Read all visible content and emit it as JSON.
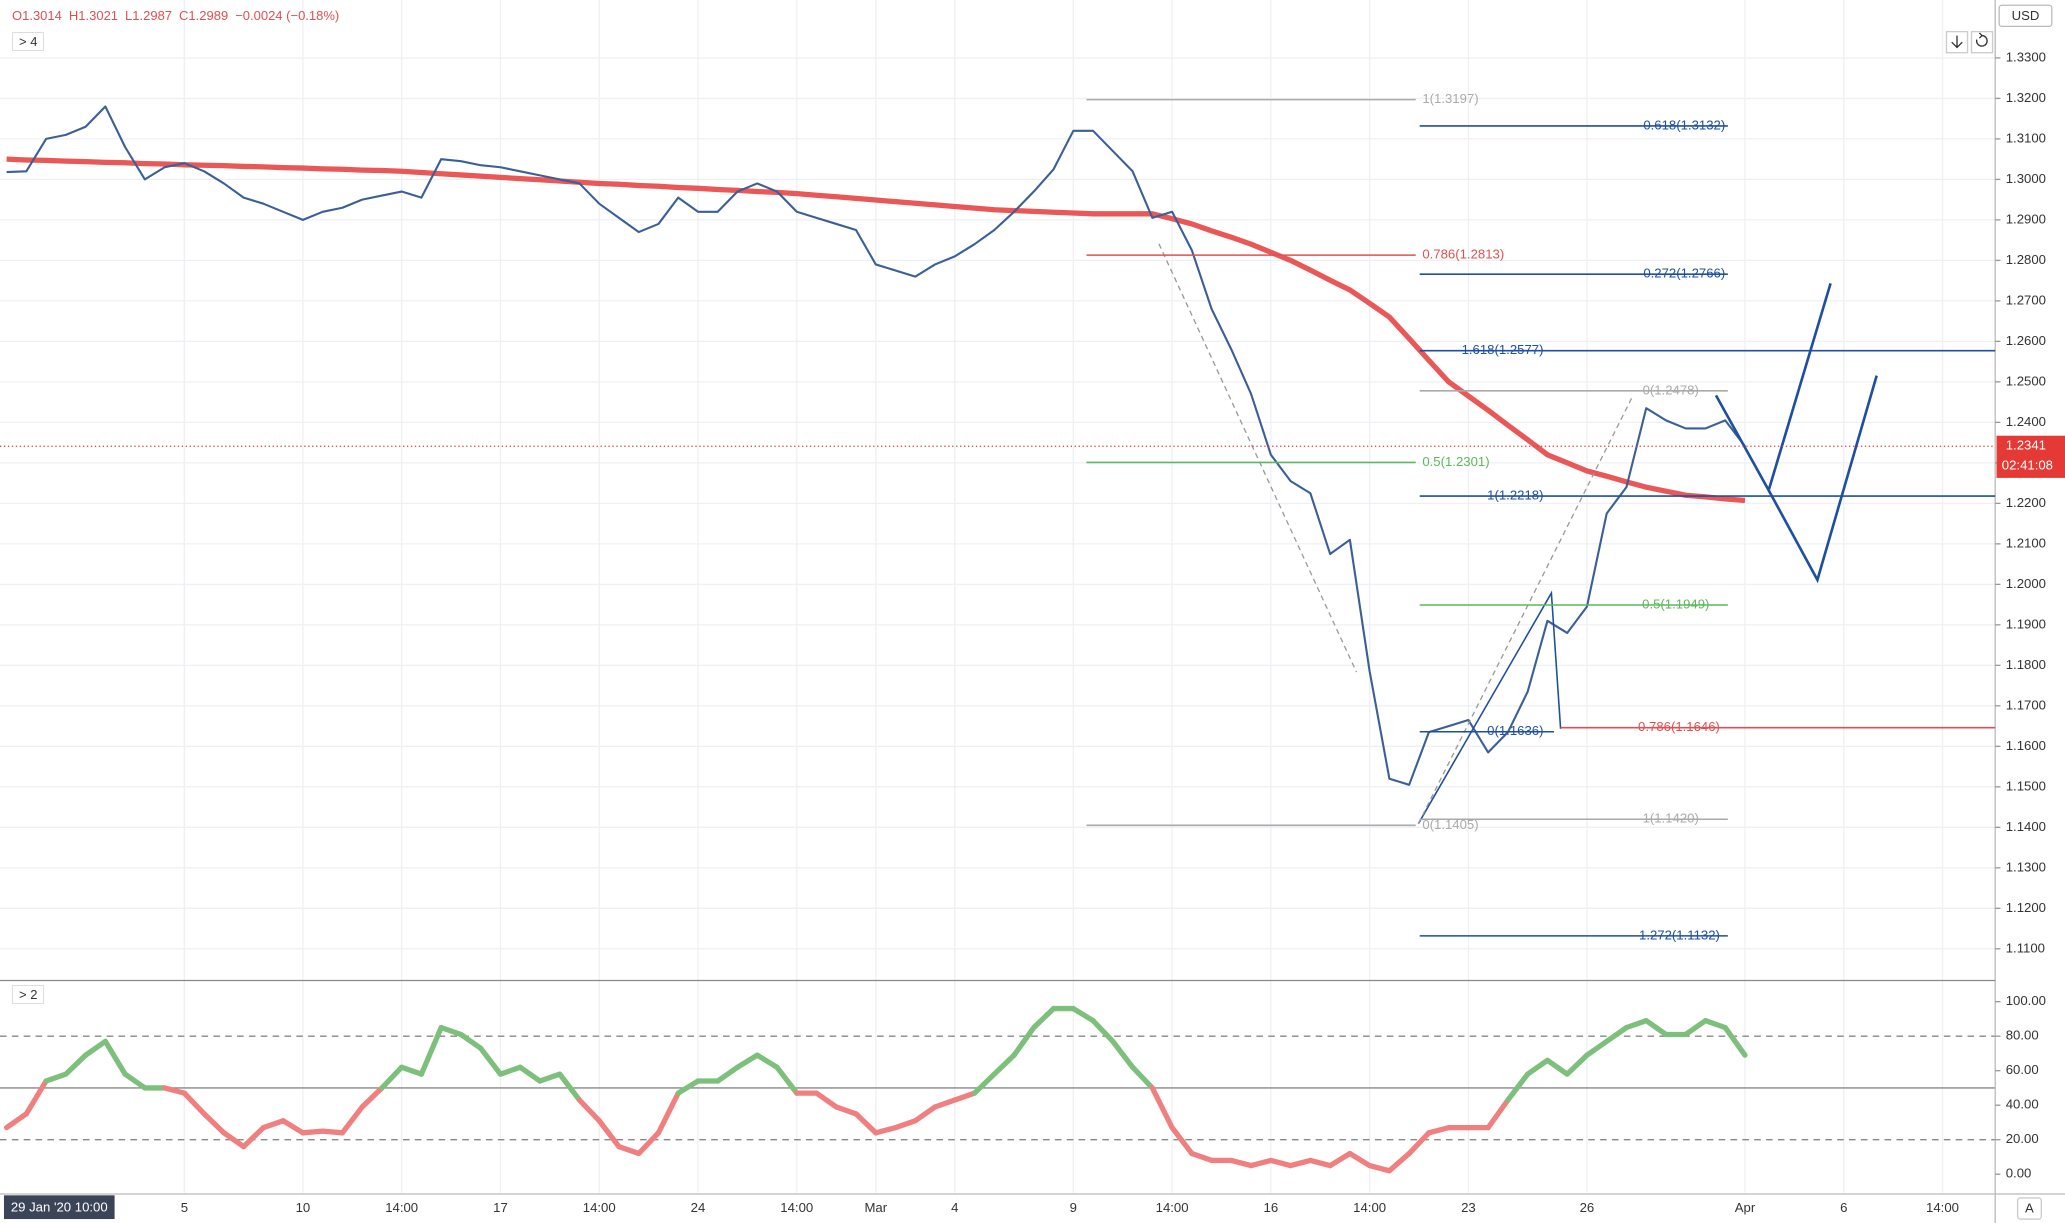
{
  "chart_data": [
    {
      "type": "line",
      "ohlc_legend": [
        "O1.3014",
        "H1.3021",
        "L1.2987",
        "C1.2989",
        "−0.0024 (−0.18%)"
      ],
      "indicator_count": "4",
      "currency": "USD",
      "auto_scale": "A",
      "crosshair_time": "29 Jan '20 10:00",
      "categories": [
        null,
        null,
        null,
        null,
        null,
        null,
        null,
        null,
        null,
        "5",
        null,
        null,
        null,
        null,
        null,
        "10",
        null,
        null,
        null,
        null,
        "14:00",
        null,
        null,
        null,
        null,
        "17",
        null,
        null,
        null,
        null,
        "14:00",
        null,
        null,
        null,
        null,
        "24",
        null,
        null,
        null,
        null,
        "14:00",
        null,
        null,
        null,
        "Mar",
        null,
        null,
        null,
        "4",
        null,
        null,
        null,
        null,
        null,
        "9",
        null,
        null,
        null,
        null,
        "14:00",
        null,
        null,
        null,
        null,
        "16",
        null,
        null,
        null,
        null,
        "14:00",
        null,
        null,
        null,
        null,
        "23",
        null,
        null,
        null,
        null,
        null,
        "26",
        null,
        null,
        null,
        null,
        null,
        null,
        null,
        "Apr",
        null,
        null,
        null,
        null,
        "6",
        null,
        null,
        null,
        null,
        "14:00",
        null,
        null
      ],
      "series": [
        {
          "color": "#e95757",
          "line_width": 4,
          "values": [
            1.305,
            1.3048,
            1.3047,
            1.3045,
            1.3044,
            1.3042,
            1.3041,
            1.3039,
            1.3038,
            1.3036,
            1.3035,
            1.3034,
            1.3032,
            1.3031,
            1.3029,
            1.3028,
            1.3026,
            1.3025,
            1.3023,
            1.3022,
            1.302,
            1.3017,
            1.3014,
            1.3011,
            1.3008,
            1.3005,
            1.3002,
            1.2999,
            1.2996,
            1.2993,
            1.299,
            1.2988,
            1.2985,
            1.2983,
            1.298,
            1.2978,
            1.2975,
            1.2973,
            1.297,
            1.2968,
            1.2965,
            1.2961,
            1.2957,
            1.2953,
            1.2949,
            1.2945,
            1.2941,
            1.2937,
            1.2933,
            1.2929,
            1.2925,
            1.2923,
            1.2921,
            1.2919,
            1.2917,
            1.2915,
            1.2915,
            1.2915,
            1.2915,
            1.2903,
            1.289,
            1.2873,
            1.2857,
            1.284,
            1.282,
            1.28,
            1.2776,
            1.2751,
            1.2727,
            1.2694,
            1.266,
            1.2607,
            1.2553,
            1.25,
            1.2465,
            1.243,
            1.2393,
            1.2357,
            1.232,
            1.23,
            1.228,
            1.2267,
            1.2253,
            1.224,
            1.223,
            1.222,
            1.2216,
            1.2211,
            1.2207,
            null,
            null,
            null,
            null,
            null,
            null,
            null,
            null,
            null,
            null,
            null,
            null
          ]
        },
        {
          "color": "#3b5f96",
          "line_width": 1.6,
          "values": [
            1.3018,
            1.302,
            1.31,
            1.311,
            1.313,
            1.318,
            1.308,
            1.3,
            1.303,
            1.304,
            1.302,
            1.299,
            1.2955,
            1.294,
            1.292,
            1.29,
            1.292,
            1.293,
            1.295,
            1.296,
            1.297,
            1.2955,
            1.305,
            1.3045,
            1.3035,
            1.303,
            1.302,
            1.301,
            1.3,
            1.299,
            1.294,
            1.2905,
            1.287,
            1.289,
            1.2955,
            1.292,
            1.292,
            1.297,
            1.299,
            1.297,
            1.292,
            1.2905,
            1.289,
            1.2875,
            1.279,
            1.2775,
            1.276,
            1.279,
            1.281,
            1.284,
            1.2875,
            1.292,
            1.297,
            1.3025,
            1.312,
            1.312,
            1.307,
            1.302,
            1.2905,
            1.292,
            1.2825,
            1.268,
            1.258,
            1.247,
            1.232,
            1.2255,
            1.2225,
            1.2075,
            1.211,
            1.1785,
            1.152,
            1.1505,
            1.1635,
            1.165,
            1.1665,
            1.1585,
            1.1635,
            1.1735,
            1.191,
            1.188,
            1.1945,
            1.2175,
            1.224,
            1.2435,
            1.2405,
            1.2385,
            1.2385,
            1.2405,
            1.2341,
            null,
            null,
            null,
            null,
            null,
            null,
            null,
            null,
            null,
            null,
            null,
            null
          ]
        }
      ],
      "ylim": [
        1.1025,
        1.3443
      ],
      "yticks": [
        {
          "value": 1.11,
          "label": "1.1100"
        },
        {
          "value": 1.12,
          "label": "1.1200"
        },
        {
          "value": 1.13,
          "label": "1.1300"
        },
        {
          "value": 1.14,
          "label": "1.1400"
        },
        {
          "value": 1.15,
          "label": "1.1500"
        },
        {
          "value": 1.16,
          "label": "1.1600"
        },
        {
          "value": 1.17,
          "label": "1.1700"
        },
        {
          "value": 1.18,
          "label": "1.1800"
        },
        {
          "value": 1.19,
          "label": "1.1900"
        },
        {
          "value": 1.2,
          "label": "1.2000"
        },
        {
          "value": 1.21,
          "label": "1.2100"
        },
        {
          "value": 1.22,
          "label": "1.2200"
        },
        {
          "value": 1.23,
          "label": "1.2300"
        },
        {
          "value": 1.24,
          "label": "1.2400"
        },
        {
          "value": 1.25,
          "label": "1.2500"
        },
        {
          "value": 1.26,
          "label": "1.2600"
        },
        {
          "value": 1.27,
          "label": "1.2700"
        },
        {
          "value": 1.28,
          "label": "1.2800"
        },
        {
          "value": 1.29,
          "label": "1.2900"
        },
        {
          "value": 1.3,
          "label": "1.3000"
        },
        {
          "value": 1.31,
          "label": "1.3100"
        },
        {
          "value": 1.32,
          "label": "1.3200"
        },
        {
          "value": 1.33,
          "label": "1.3300"
        }
      ],
      "grid": true,
      "last_price": {
        "value": 1.2341,
        "label": "1.2341",
        "color": "#e53935"
      },
      "countdown": "02:41:08",
      "fib_levels": [
        {
          "label": "1(1.3197)",
          "value": 1.3197,
          "color": "#aaaaaa"
        },
        {
          "label": "-0.618(1.3132)",
          "value": 1.3132,
          "color": "#1e4fa0"
        },
        {
          "label": "0.786(1.2813)",
          "value": 1.2813,
          "color": "#e05050"
        },
        {
          "label": "-0.272(1.2766)",
          "value": 1.2766,
          "color": "#1e4fa0"
        },
        {
          "label": "1.618(1.2577)",
          "value": 1.2577,
          "color": "#1e4fa0"
        },
        {
          "label": "0(1.2478)",
          "value": 1.2478,
          "color": "#aaaaaa"
        },
        {
          "label": "0.5(1.2301)",
          "value": 1.2301,
          "color": "#5cb85c"
        },
        {
          "label": "1(1.2218)",
          "value": 1.2218,
          "color": "#1e4fa0"
        },
        {
          "label": "0.5(1.1949)",
          "value": 1.1949,
          "color": "#5cb85c"
        },
        {
          "label": "0(1.1636)",
          "value": 1.1636,
          "color": "#1e4fa0"
        },
        {
          "label": "0.786(1.1646)",
          "value": 1.1646,
          "color": "#e05050"
        },
        {
          "label": "0(1.1405)",
          "value": 1.1405,
          "color": "#aaaaaa"
        },
        {
          "label": "1(1.1420)",
          "value": 1.142,
          "color": "#aaaaaa"
        },
        {
          "label": "1.272(1.1132)",
          "value": 1.1132,
          "color": "#1e4fa0"
        }
      ]
    },
    {
      "type": "line",
      "indicator_count": "2",
      "series": [
        {
          "color": "#7cc07c",
          "color_below": "#f07f7f",
          "line_width": 4,
          "values": [
            27,
            35,
            54,
            58,
            69,
            77,
            58,
            50,
            50,
            47,
            35,
            24,
            16,
            27,
            31,
            24,
            25,
            24,
            39,
            50,
            62,
            58,
            85,
            81,
            73,
            58,
            62,
            54,
            58,
            43,
            31,
            16,
            12,
            24,
            47,
            54,
            54,
            62,
            69,
            62,
            47,
            47,
            39,
            35,
            24,
            27,
            31,
            39,
            43,
            47,
            58,
            69,
            85,
            96,
            96,
            89,
            77,
            62,
            50,
            27,
            12,
            8,
            8,
            5,
            8,
            5,
            8,
            5,
            12,
            5,
            2,
            12,
            24,
            27,
            27,
            27,
            43,
            58,
            66,
            58,
            69,
            77,
            85,
            89,
            81,
            81,
            89,
            85,
            69,
            null,
            null,
            null,
            null,
            null,
            null,
            null,
            null,
            null,
            null,
            null,
            null
          ]
        }
      ],
      "ylim": [
        -10.7,
        111.5
      ],
      "yticks": [
        {
          "value": 0,
          "label": "0.00"
        },
        {
          "value": 20,
          "label": "20.00"
        },
        {
          "value": 40,
          "label": "40.00"
        },
        {
          "value": 60,
          "label": "60.00"
        },
        {
          "value": 80,
          "label": "80.00"
        },
        {
          "value": 100,
          "label": "100.00"
        }
      ],
      "hlines": [
        {
          "value": 80,
          "style": "dashed"
        },
        {
          "value": 50,
          "style": "solid"
        },
        {
          "value": 20,
          "style": "dashed"
        }
      ]
    }
  ]
}
